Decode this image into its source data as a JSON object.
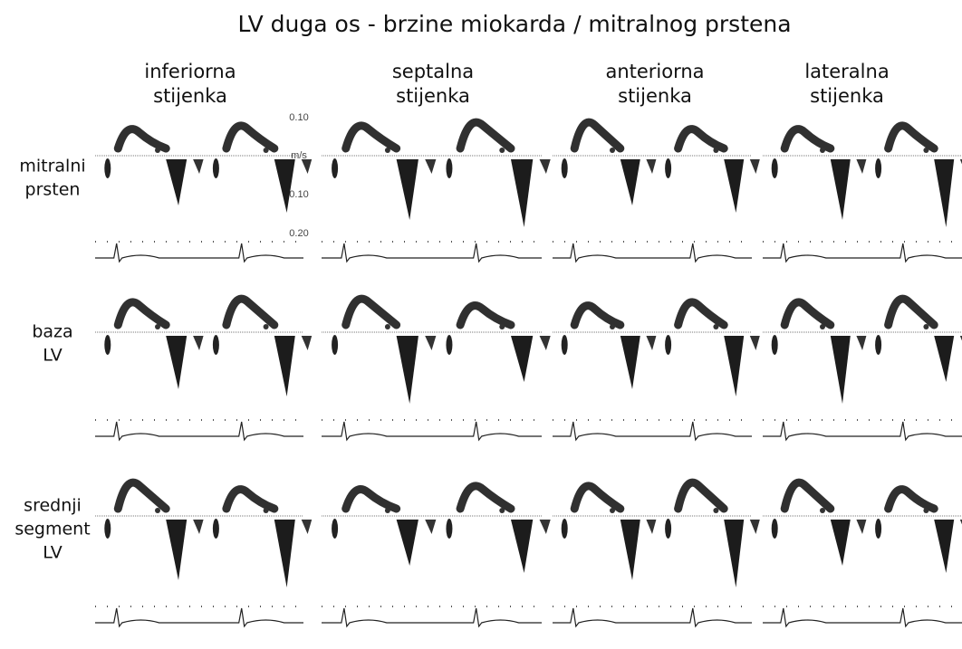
{
  "title": "LV duga os - brzine miokarda / mitralnog prstena",
  "columns": [
    [
      "inferiorna",
      "stijenka"
    ],
    [
      "septalna",
      "stijenka"
    ],
    [
      "anteriorna",
      "stijenka"
    ],
    [
      "lateralna",
      "stijenka"
    ]
  ],
  "rows": [
    [
      "mitralni",
      "prsten"
    ],
    [
      "baza",
      "LV"
    ],
    [
      "srednji",
      "segment",
      "LV"
    ]
  ],
  "scale_labels": [
    "0.10",
    "m/s",
    "0.10",
    "0.20"
  ]
}
